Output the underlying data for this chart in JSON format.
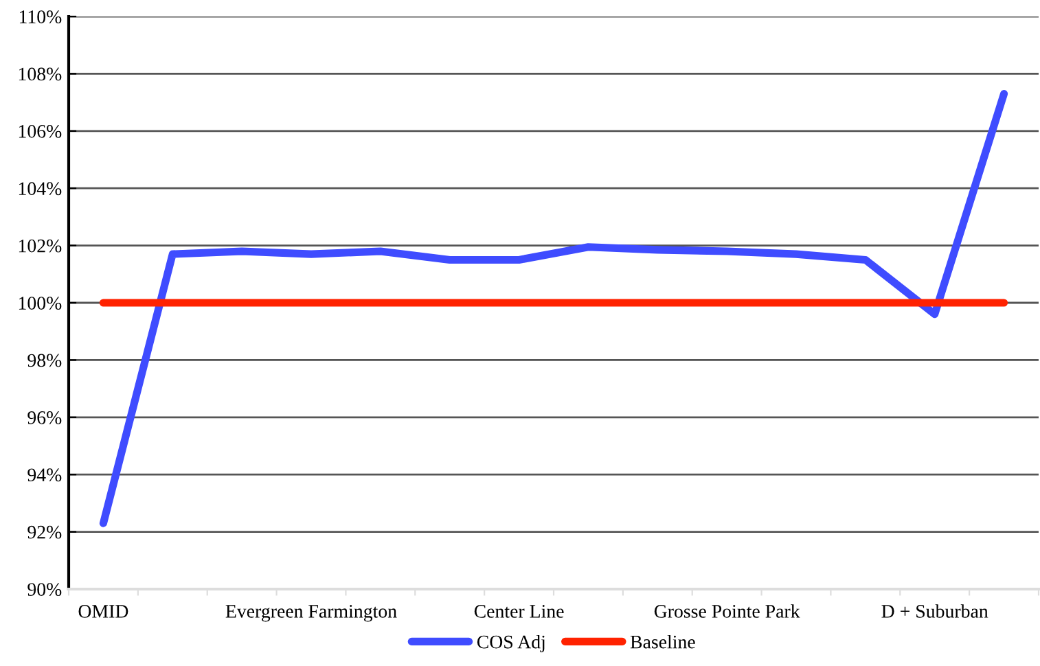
{
  "chart_data": {
    "type": "line",
    "categories": [
      "OMID",
      null,
      null,
      "Evergreen Farmington",
      null,
      null,
      "Center Line",
      null,
      null,
      "Grosse Pointe Park",
      null,
      null,
      "D + Suburban",
      null
    ],
    "series": [
      {
        "name": "COS Adj",
        "color": "#3f4cff",
        "values": [
          92.3,
          101.7,
          101.8,
          101.7,
          101.8,
          101.5,
          101.5,
          101.95,
          101.85,
          101.8,
          101.7,
          101.5,
          99.6,
          107.3
        ]
      },
      {
        "name": "Baseline",
        "color": "#ff2200",
        "values": [
          100,
          100,
          100,
          100,
          100,
          100,
          100,
          100,
          100,
          100,
          100,
          100,
          100,
          100
        ]
      }
    ],
    "ylim": [
      90,
      110
    ],
    "yticks": [
      {
        "value": 90,
        "label": "90%"
      },
      {
        "value": 92,
        "label": "92%"
      },
      {
        "value": 94,
        "label": "94%"
      },
      {
        "value": 96,
        "label": "96%"
      },
      {
        "value": 98,
        "label": "98%"
      },
      {
        "value": 100,
        "label": "100%"
      },
      {
        "value": 102,
        "label": "102%"
      },
      {
        "value": 104,
        "label": "104%"
      },
      {
        "value": 106,
        "label": "106%"
      },
      {
        "value": 108,
        "label": "108%"
      },
      {
        "value": 110,
        "label": "110%"
      }
    ],
    "grid": "y",
    "legend": "bottom",
    "marker": "none",
    "line_style": "solid"
  }
}
